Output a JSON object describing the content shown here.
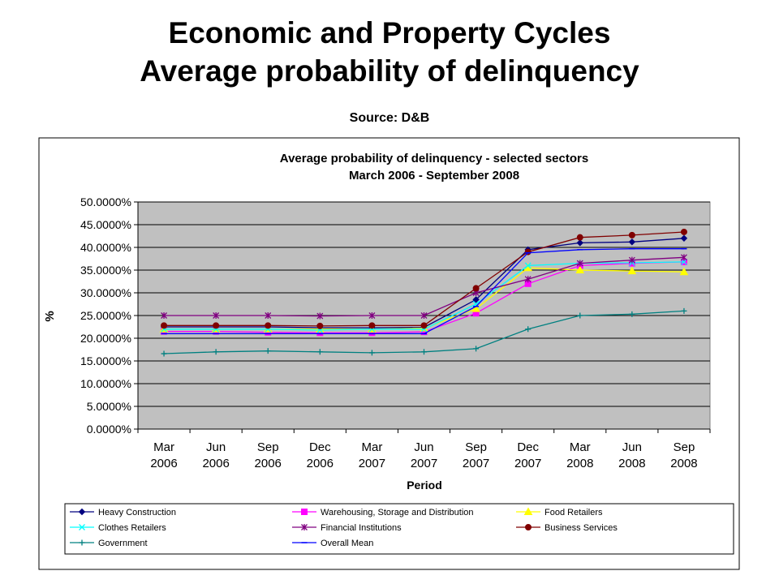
{
  "slide": {
    "title_line1": "Economic and Property Cycles",
    "title_line2": "Average probability of delinquency",
    "source": "Source: D&B"
  },
  "chart_data": {
    "type": "line",
    "title": "Average probability of delinquency - selected sectors",
    "subtitle": "March 2006 - September 2008",
    "xlabel": "Period",
    "ylabel": "%",
    "categories": [
      [
        "Mar",
        "2006"
      ],
      [
        "Jun",
        "2006"
      ],
      [
        "Sep",
        "2006"
      ],
      [
        "Dec",
        "2006"
      ],
      [
        "Mar",
        "2007"
      ],
      [
        "Jun",
        "2007"
      ],
      [
        "Sep",
        "2007"
      ],
      [
        "Dec",
        "2007"
      ],
      [
        "Mar",
        "2008"
      ],
      [
        "Jun",
        "2008"
      ],
      [
        "Sep",
        "2008"
      ]
    ],
    "yticks": [
      "0.0000%",
      "5.0000%",
      "10.0000%",
      "15.0000%",
      "20.0000%",
      "25.0000%",
      "30.0000%",
      "35.0000%",
      "40.0000%",
      "45.0000%",
      "50.0000%"
    ],
    "ylim": [
      0,
      50
    ],
    "grid": true,
    "legend_position": "bottom",
    "plot_background": "#c0c0c0",
    "series": [
      {
        "name": "Heavy Construction",
        "color": "#000080",
        "marker": "diamond",
        "values": [
          22.5,
          22.5,
          22.5,
          22.3,
          22.3,
          22.4,
          28.5,
          39.5,
          41.0,
          41.2,
          42.0
        ]
      },
      {
        "name": "Warehousing, Storage and Distribution",
        "color": "#ff00ff",
        "marker": "square",
        "values": [
          21.5,
          21.5,
          21.3,
          21.2,
          21.2,
          21.4,
          25.5,
          32.0,
          36.0,
          36.5,
          36.8
        ]
      },
      {
        "name": "Food Retailers",
        "color": "#ffff00",
        "marker": "triangle",
        "values": [
          22.0,
          22.0,
          22.0,
          22.0,
          22.0,
          22.2,
          26.5,
          35.5,
          35.0,
          34.8,
          34.6
        ]
      },
      {
        "name": "Clothes Retailers",
        "color": "#00ffff",
        "marker": "x",
        "values": [
          22.0,
          22.0,
          22.0,
          21.8,
          22.0,
          22.0,
          27.5,
          36.0,
          36.5,
          36.6,
          36.8
        ]
      },
      {
        "name": "Financial Institutions",
        "color": "#800080",
        "marker": "star",
        "values": [
          25.0,
          25.0,
          25.0,
          24.9,
          25.0,
          25.0,
          30.0,
          33.0,
          36.5,
          37.2,
          37.8
        ]
      },
      {
        "name": "Business Services",
        "color": "#800000",
        "marker": "circle",
        "values": [
          22.8,
          22.8,
          22.8,
          22.7,
          22.8,
          22.8,
          31.0,
          39.0,
          42.2,
          42.7,
          43.4
        ]
      },
      {
        "name": "Government",
        "color": "#008080",
        "marker": "plus",
        "values": [
          16.6,
          17.0,
          17.2,
          17.0,
          16.8,
          17.0,
          17.7,
          22.0,
          25.0,
          25.3,
          26.0
        ]
      },
      {
        "name": "Overall Mean",
        "color": "#0000ff",
        "marker": "dash",
        "values": [
          21.0,
          21.0,
          21.0,
          21.0,
          21.0,
          21.0,
          27.0,
          38.8,
          39.5,
          39.7,
          39.7
        ]
      }
    ]
  }
}
